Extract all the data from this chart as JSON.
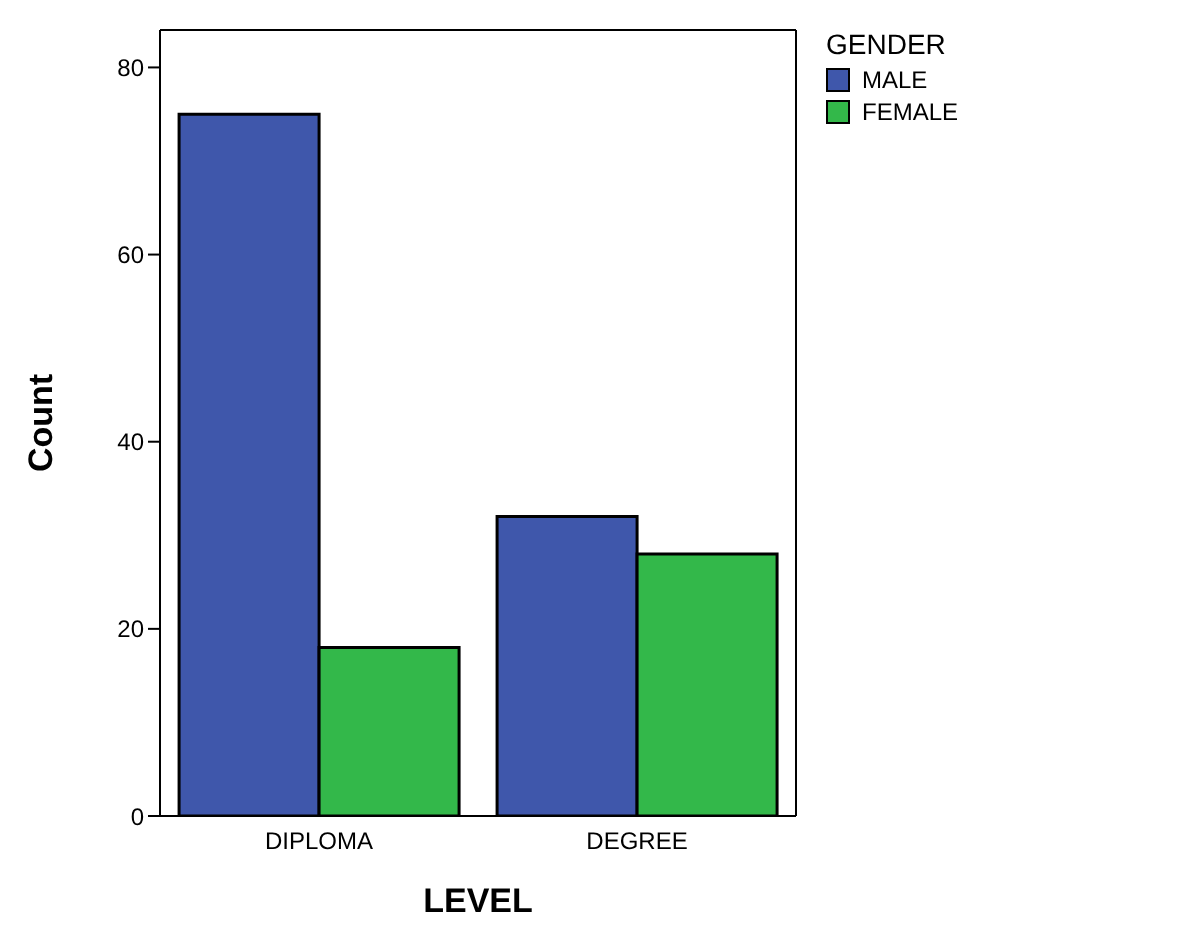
{
  "chart_data": {
    "type": "bar",
    "xlabel": "LEVEL",
    "ylabel": "Count",
    "legend_title": "GENDER",
    "categories": [
      "DIPLOMA",
      "DEGREE"
    ],
    "series": [
      {
        "name": "MALE",
        "color": "#3f57ab",
        "values": [
          75,
          32
        ]
      },
      {
        "name": "FEMALE",
        "color": "#33b84a",
        "values": [
          18,
          28
        ]
      }
    ],
    "ylim": [
      0,
      84
    ],
    "yticks": [
      0,
      20,
      40,
      60,
      80
    ],
    "grid": false,
    "legend": "top right"
  }
}
